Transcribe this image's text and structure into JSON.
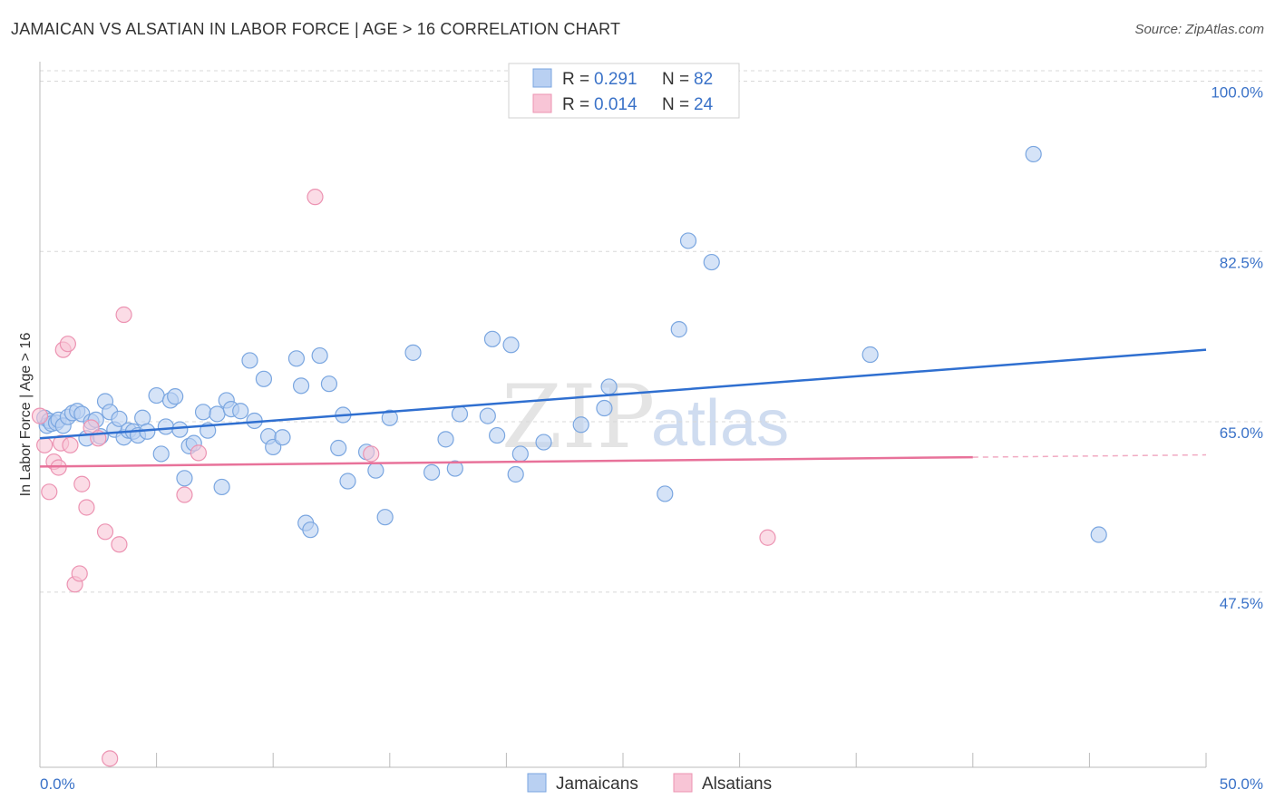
{
  "header": {
    "title": "JAMAICAN VS ALSATIAN IN LABOR FORCE | AGE > 16 CORRELATION CHART",
    "source": "Source: ZipAtlas.com"
  },
  "watermark": {
    "zip": "ZIP",
    "atlas": "atlas"
  },
  "colors": {
    "blue_fill": "#b9d0f2",
    "blue_stroke": "#7aa6e0",
    "blue_line": "#2f6fd0",
    "pink_fill": "#f8c5d6",
    "pink_stroke": "#ec93b2",
    "pink_line": "#e8729a",
    "tick_text": "#3a72c8",
    "grid": "#d8d8d8"
  },
  "legend": {
    "rows": [
      {
        "r_label": "R =",
        "r_value": "0.291",
        "n_label": "N =",
        "n_value": "82"
      },
      {
        "r_label": "R =",
        "r_value": "0.014",
        "n_label": "N =",
        "n_value": "24"
      }
    ]
  },
  "bottom_legend": [
    "Jamaicans",
    "Alsatians"
  ],
  "chart_data": {
    "type": "scatter",
    "title": "JAMAICAN VS ALSATIAN IN LABOR FORCE | AGE > 16 CORRELATION CHART",
    "xlabel": "",
    "ylabel": "In Labor Force | Age > 16",
    "xlim": [
      0,
      50
    ],
    "ylim": [
      29.5,
      102
    ],
    "x_tick_labels": [
      "0.0%",
      "50.0%"
    ],
    "y_ticks": [
      47.5,
      65.0,
      82.5,
      100.0
    ],
    "y_tick_labels": [
      "47.5%",
      "65.0%",
      "82.5%",
      "100.0%"
    ],
    "grid": true,
    "series": [
      {
        "name": "Jamaicans",
        "R": 0.291,
        "N": 82,
        "trend": {
          "x": [
            0,
            50
          ],
          "y": [
            63.3,
            72.4
          ],
          "dashed_from": null
        },
        "points": [
          [
            0.2,
            65.4
          ],
          [
            0.3,
            64.6
          ],
          [
            0.4,
            65.1
          ],
          [
            0.5,
            64.8
          ],
          [
            0.7,
            64.9
          ],
          [
            0.8,
            65.2
          ],
          [
            1.0,
            64.6
          ],
          [
            1.2,
            65.5
          ],
          [
            1.4,
            65.9
          ],
          [
            1.6,
            66.1
          ],
          [
            1.8,
            65.8
          ],
          [
            2.0,
            63.3
          ],
          [
            2.2,
            65.0
          ],
          [
            2.4,
            65.2
          ],
          [
            2.6,
            63.5
          ],
          [
            2.8,
            67.1
          ],
          [
            3.0,
            66.0
          ],
          [
            3.2,
            64.2
          ],
          [
            3.4,
            65.3
          ],
          [
            3.6,
            63.4
          ],
          [
            3.8,
            64.1
          ],
          [
            4.0,
            64.0
          ],
          [
            4.2,
            63.6
          ],
          [
            4.4,
            65.4
          ],
          [
            4.6,
            64.0
          ],
          [
            5.0,
            67.7
          ],
          [
            5.2,
            61.7
          ],
          [
            5.4,
            64.5
          ],
          [
            5.6,
            67.2
          ],
          [
            5.8,
            67.6
          ],
          [
            6.0,
            64.2
          ],
          [
            6.2,
            59.2
          ],
          [
            6.4,
            62.5
          ],
          [
            6.6,
            62.8
          ],
          [
            7.0,
            66.0
          ],
          [
            7.2,
            64.1
          ],
          [
            7.6,
            65.8
          ],
          [
            7.8,
            58.3
          ],
          [
            8.0,
            67.2
          ],
          [
            8.2,
            66.3
          ],
          [
            8.6,
            66.1
          ],
          [
            9.0,
            71.3
          ],
          [
            9.2,
            65.1
          ],
          [
            9.6,
            69.4
          ],
          [
            9.8,
            63.5
          ],
          [
            10.0,
            62.4
          ],
          [
            10.4,
            63.4
          ],
          [
            11.0,
            71.5
          ],
          [
            11.2,
            68.7
          ],
          [
            11.4,
            54.6
          ],
          [
            11.6,
            53.9
          ],
          [
            12.0,
            71.8
          ],
          [
            12.4,
            68.9
          ],
          [
            12.8,
            62.3
          ],
          [
            13.0,
            65.7
          ],
          [
            13.2,
            58.9
          ],
          [
            14.0,
            61.9
          ],
          [
            14.4,
            60.0
          ],
          [
            14.8,
            55.2
          ],
          [
            15.0,
            65.4
          ],
          [
            16.0,
            72.1
          ],
          [
            16.8,
            59.8
          ],
          [
            17.4,
            63.2
          ],
          [
            17.8,
            60.2
          ],
          [
            18.0,
            65.8
          ],
          [
            19.2,
            65.6
          ],
          [
            19.4,
            73.5
          ],
          [
            19.6,
            63.6
          ],
          [
            20.2,
            72.9
          ],
          [
            20.4,
            59.6
          ],
          [
            20.6,
            61.7
          ],
          [
            21.6,
            62.9
          ],
          [
            23.2,
            64.7
          ],
          [
            24.2,
            66.4
          ],
          [
            24.4,
            68.6
          ],
          [
            26.8,
            57.6
          ],
          [
            27.4,
            74.5
          ],
          [
            27.8,
            83.6
          ],
          [
            28.8,
            81.4
          ],
          [
            35.6,
            71.9
          ],
          [
            42.6,
            92.5
          ],
          [
            45.4,
            53.4
          ]
        ]
      },
      {
        "name": "Alsatians",
        "R": 0.014,
        "N": 24,
        "trend": {
          "x": [
            0,
            50
          ],
          "y": [
            60.4,
            61.6
          ],
          "dashed_from": 40
        },
        "points": [
          [
            0.0,
            65.6
          ],
          [
            0.2,
            62.6
          ],
          [
            0.4,
            57.8
          ],
          [
            0.6,
            60.9
          ],
          [
            0.8,
            60.3
          ],
          [
            0.9,
            62.8
          ],
          [
            1.0,
            72.4
          ],
          [
            1.2,
            73.0
          ],
          [
            1.3,
            62.6
          ],
          [
            1.5,
            48.3
          ],
          [
            1.7,
            49.4
          ],
          [
            1.8,
            58.6
          ],
          [
            2.0,
            56.2
          ],
          [
            2.2,
            64.4
          ],
          [
            2.5,
            63.3
          ],
          [
            2.8,
            53.7
          ],
          [
            3.0,
            30.4
          ],
          [
            3.4,
            52.4
          ],
          [
            3.6,
            76.0
          ],
          [
            6.2,
            57.5
          ],
          [
            6.8,
            61.8
          ],
          [
            11.8,
            88.1
          ],
          [
            14.2,
            61.7
          ],
          [
            31.2,
            53.1
          ]
        ]
      }
    ]
  }
}
